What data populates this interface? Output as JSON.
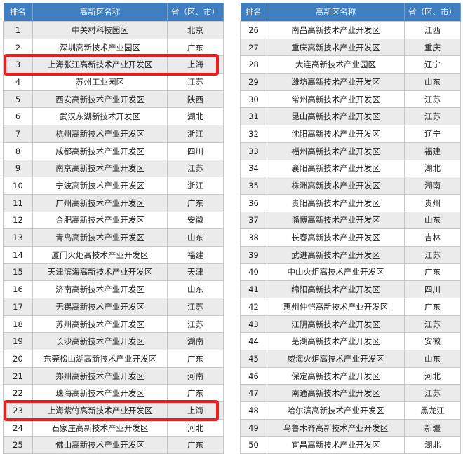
{
  "headers": {
    "rank": "排名",
    "name": "高新区名称",
    "province": "省（区、市）"
  },
  "highlight_color": "#ee1c1c",
  "header_color": "#3f7fc1",
  "highlighted_ranks": [
    3,
    23
  ],
  "left_rows": [
    {
      "rank": "1",
      "name": "中关村科技园区",
      "province": "北京"
    },
    {
      "rank": "2",
      "name": "深圳高新技术产业园区",
      "province": "广东"
    },
    {
      "rank": "3",
      "name": "上海张江高新技术产业开发区",
      "province": "上海"
    },
    {
      "rank": "4",
      "name": "苏州工业园区",
      "province": "江苏"
    },
    {
      "rank": "5",
      "name": "西安高新技术产业开发区",
      "province": "陕西"
    },
    {
      "rank": "6",
      "name": "武汉东湖新技术开发区",
      "province": "湖北"
    },
    {
      "rank": "7",
      "name": "杭州高新技术产业开发区",
      "province": "浙江"
    },
    {
      "rank": "8",
      "name": "成都高新技术产业开发区",
      "province": "四川"
    },
    {
      "rank": "9",
      "name": "南京高新技术产业开发区",
      "province": "江苏"
    },
    {
      "rank": "10",
      "name": "宁波高新技术产业开发区",
      "province": "浙江"
    },
    {
      "rank": "11",
      "name": "广州高新技术产业开发区",
      "province": "广东"
    },
    {
      "rank": "12",
      "name": "合肥高新技术产业开发区",
      "province": "安徽"
    },
    {
      "rank": "13",
      "name": "青岛高新技术产业开发区",
      "province": "山东"
    },
    {
      "rank": "14",
      "name": "厦门火炬高技术产业开发区",
      "province": "福建"
    },
    {
      "rank": "15",
      "name": "天津滨海高新技术产业开发区",
      "province": "天津"
    },
    {
      "rank": "16",
      "name": "济南高新技术产业开发区",
      "province": "山东"
    },
    {
      "rank": "17",
      "name": "无锡高新技术产业开发区",
      "province": "江苏"
    },
    {
      "rank": "18",
      "name": "苏州高新技术产业开发区",
      "province": "江苏"
    },
    {
      "rank": "19",
      "name": "长沙高新技术产业开发区",
      "province": "湖南"
    },
    {
      "rank": "20",
      "name": "东莞松山湖高新技术产业开发区",
      "province": "广东"
    },
    {
      "rank": "21",
      "name": "郑州高新技术产业开发区",
      "province": "河南"
    },
    {
      "rank": "22",
      "name": "珠海高新技术产业开发区",
      "province": "广东"
    },
    {
      "rank": "23",
      "name": "上海紫竹高新技术产业开发区",
      "province": "上海"
    },
    {
      "rank": "24",
      "name": "石家庄高新技术产业开发区",
      "province": "河北"
    },
    {
      "rank": "25",
      "name": "佛山高新技术产业开发区",
      "province": "广东"
    }
  ],
  "right_rows": [
    {
      "rank": "26",
      "name": "南昌高新技术产业开发区",
      "province": "江西"
    },
    {
      "rank": "27",
      "name": "重庆高新技术产业开发区",
      "province": "重庆"
    },
    {
      "rank": "28",
      "name": "大连高新技术产业园区",
      "province": "辽宁"
    },
    {
      "rank": "29",
      "name": "潍坊高新技术产业开发区",
      "province": "山东"
    },
    {
      "rank": "30",
      "name": "常州高新技术产业开发区",
      "province": "江苏"
    },
    {
      "rank": "31",
      "name": "昆山高新技术产业开发区",
      "province": "江苏"
    },
    {
      "rank": "32",
      "name": "沈阳高新技术产业开发区",
      "province": "辽宁"
    },
    {
      "rank": "33",
      "name": "福州高新技术产业开发区",
      "province": "福建"
    },
    {
      "rank": "34",
      "name": "襄阳高新技术产业开发区",
      "province": "湖北"
    },
    {
      "rank": "35",
      "name": "株洲高新技术产业开发区",
      "province": "湖南"
    },
    {
      "rank": "36",
      "name": "贵阳高新技术产业开发区",
      "province": "贵州"
    },
    {
      "rank": "37",
      "name": "淄博高新技术产业开发区",
      "province": "山东"
    },
    {
      "rank": "38",
      "name": "长春高新技术产业开发区",
      "province": "吉林"
    },
    {
      "rank": "39",
      "name": "武进高新技术产业开发区",
      "province": "江苏"
    },
    {
      "rank": "40",
      "name": "中山火炬高技术产业开发区",
      "province": "广东"
    },
    {
      "rank": "41",
      "name": "绵阳高新技术产业开发区",
      "province": "四川"
    },
    {
      "rank": "42",
      "name": "惠州仲恺高新技术产业开发区",
      "province": "广东"
    },
    {
      "rank": "43",
      "name": "江阴高新技术产业开发区",
      "province": "江苏"
    },
    {
      "rank": "44",
      "name": "芜湖高新技术产业开发区",
      "province": "安徽"
    },
    {
      "rank": "45",
      "name": "威海火炬高技术产业开发区",
      "province": "山东"
    },
    {
      "rank": "46",
      "name": "保定高新技术产业开发区",
      "province": "河北"
    },
    {
      "rank": "47",
      "name": "南通高新技术产业开发区",
      "province": "江苏"
    },
    {
      "rank": "48",
      "name": "哈尔滨高新技术产业开发区",
      "province": "黑龙江"
    },
    {
      "rank": "49",
      "name": "乌鲁木齐高新技术产业开发区",
      "province": "新疆"
    },
    {
      "rank": "50",
      "name": "宜昌高新技术产业开发区",
      "province": "湖北"
    }
  ]
}
